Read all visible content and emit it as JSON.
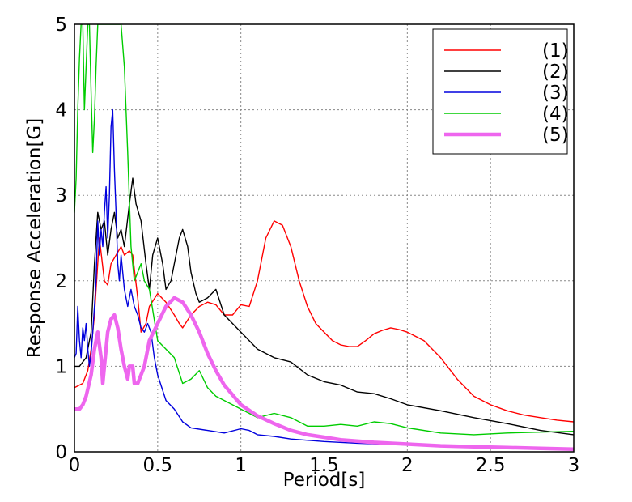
{
  "chart_data": {
    "type": "line",
    "title": "",
    "xlabel": "Period[s]",
    "ylabel": "Response Acceleration[G]",
    "xlim": [
      0,
      3
    ],
    "ylim": [
      0,
      5
    ],
    "xticks": [
      0,
      0.5,
      1,
      1.5,
      2,
      2.5,
      3
    ],
    "xtick_labels": [
      "0",
      "0.5",
      "1",
      "1.5",
      "2",
      "2.5",
      "3"
    ],
    "yticks": [
      0,
      1,
      2,
      3,
      4,
      5
    ],
    "ytick_labels": [
      "0",
      "1",
      "2",
      "3",
      "4",
      "5"
    ],
    "grid": true,
    "legend": "top-right",
    "series": [
      {
        "name": "(1)",
        "color": "#ff0000",
        "width": 1.4,
        "x": [
          0,
          0.05,
          0.08,
          0.1,
          0.12,
          0.15,
          0.18,
          0.2,
          0.22,
          0.25,
          0.28,
          0.3,
          0.33,
          0.35,
          0.38,
          0.4,
          0.43,
          0.45,
          0.5,
          0.55,
          0.6,
          0.63,
          0.65,
          0.7,
          0.75,
          0.8,
          0.85,
          0.9,
          0.95,
          1.0,
          1.05,
          1.1,
          1.15,
          1.2,
          1.25,
          1.3,
          1.35,
          1.4,
          1.45,
          1.5,
          1.55,
          1.6,
          1.65,
          1.7,
          1.75,
          1.8,
          1.85,
          1.9,
          1.95,
          2.0,
          2.1,
          2.2,
          2.3,
          2.4,
          2.5,
          2.6,
          2.7,
          2.8,
          2.9,
          3.0
        ],
        "y": [
          0.75,
          0.8,
          0.95,
          1.2,
          1.6,
          2.5,
          2.0,
          1.95,
          2.2,
          2.3,
          2.4,
          2.3,
          2.35,
          2.3,
          1.8,
          1.4,
          1.5,
          1.7,
          1.85,
          1.75,
          1.6,
          1.5,
          1.45,
          1.6,
          1.7,
          1.75,
          1.72,
          1.6,
          1.6,
          1.72,
          1.7,
          2.0,
          2.5,
          2.7,
          2.65,
          2.4,
          2.0,
          1.7,
          1.5,
          1.4,
          1.3,
          1.25,
          1.23,
          1.23,
          1.3,
          1.38,
          1.42,
          1.45,
          1.43,
          1.4,
          1.3,
          1.1,
          0.85,
          0.65,
          0.55,
          0.48,
          0.43,
          0.4,
          0.37,
          0.35
        ]
      },
      {
        "name": "(2)",
        "color": "#000000",
        "width": 1.4,
        "x": [
          0,
          0.03,
          0.05,
          0.07,
          0.1,
          0.12,
          0.14,
          0.16,
          0.18,
          0.2,
          0.22,
          0.24,
          0.26,
          0.28,
          0.3,
          0.33,
          0.35,
          0.37,
          0.4,
          0.43,
          0.45,
          0.47,
          0.5,
          0.53,
          0.55,
          0.58,
          0.6,
          0.63,
          0.65,
          0.68,
          0.7,
          0.73,
          0.75,
          0.8,
          0.85,
          0.9,
          1.0,
          1.1,
          1.2,
          1.3,
          1.4,
          1.5,
          1.6,
          1.7,
          1.8,
          1.9,
          2.0,
          2.2,
          2.4,
          2.6,
          2.8,
          3.0
        ],
        "y": [
          1.0,
          1.0,
          1.05,
          1.1,
          1.4,
          2.2,
          2.8,
          2.6,
          2.7,
          2.3,
          2.6,
          2.8,
          2.5,
          2.6,
          2.4,
          2.9,
          3.2,
          2.9,
          2.7,
          2.2,
          1.9,
          2.3,
          2.5,
          2.2,
          1.9,
          2.0,
          2.2,
          2.5,
          2.6,
          2.4,
          2.1,
          1.85,
          1.75,
          1.8,
          1.9,
          1.6,
          1.4,
          1.2,
          1.1,
          1.05,
          0.9,
          0.82,
          0.78,
          0.7,
          0.68,
          0.62,
          0.55,
          0.48,
          0.4,
          0.33,
          0.25,
          0.2
        ]
      },
      {
        "name": "(3)",
        "color": "#0000dd",
        "width": 1.4,
        "x": [
          0,
          0.01,
          0.02,
          0.03,
          0.04,
          0.05,
          0.06,
          0.07,
          0.08,
          0.09,
          0.1,
          0.11,
          0.12,
          0.13,
          0.14,
          0.15,
          0.16,
          0.17,
          0.18,
          0.19,
          0.2,
          0.21,
          0.22,
          0.23,
          0.24,
          0.25,
          0.26,
          0.27,
          0.28,
          0.3,
          0.32,
          0.34,
          0.36,
          0.38,
          0.4,
          0.42,
          0.44,
          0.46,
          0.48,
          0.5,
          0.55,
          0.6,
          0.65,
          0.7,
          0.8,
          0.9,
          1.0,
          1.05,
          1.1,
          1.2,
          1.3,
          1.5,
          1.7,
          2.0,
          2.3,
          2.6,
          3.0
        ],
        "y": [
          1.1,
          1.15,
          1.7,
          1.3,
          1.1,
          1.45,
          1.3,
          1.5,
          1.2,
          1.0,
          1.15,
          1.4,
          1.7,
          2.0,
          2.7,
          2.3,
          2.6,
          2.4,
          2.8,
          3.1,
          2.5,
          3.0,
          3.8,
          4.0,
          3.3,
          2.8,
          2.2,
          2.0,
          2.3,
          1.9,
          1.7,
          1.9,
          1.7,
          1.6,
          1.45,
          1.4,
          1.5,
          1.4,
          1.1,
          0.9,
          0.6,
          0.5,
          0.35,
          0.28,
          0.25,
          0.22,
          0.27,
          0.25,
          0.2,
          0.18,
          0.15,
          0.12,
          0.1,
          0.08,
          0.06,
          0.05,
          0.04
        ]
      },
      {
        "name": "(4)",
        "color": "#00cc00",
        "width": 1.4,
        "x": [
          0,
          0.01,
          0.02,
          0.03,
          0.04,
          0.05,
          0.06,
          0.07,
          0.08,
          0.09,
          0.1,
          0.11,
          0.12,
          0.13,
          0.14,
          0.15,
          0.16,
          0.17,
          0.18,
          0.2,
          0.22,
          0.24,
          0.26,
          0.28,
          0.3,
          0.32,
          0.34,
          0.36,
          0.38,
          0.4,
          0.42,
          0.45,
          0.5,
          0.55,
          0.6,
          0.65,
          0.7,
          0.75,
          0.8,
          0.85,
          0.9,
          1.0,
          1.1,
          1.2,
          1.3,
          1.4,
          1.5,
          1.6,
          1.7,
          1.8,
          1.9,
          2.0,
          2.2,
          2.4,
          2.6,
          2.8,
          3.0
        ],
        "y": [
          2.8,
          3.2,
          4.0,
          4.6,
          5.0,
          5.0,
          4.0,
          4.5,
          5.0,
          5.0,
          4.2,
          3.5,
          3.9,
          4.5,
          5.0,
          5.0,
          5.0,
          5.0,
          5.0,
          5.0,
          5.0,
          5.0,
          5.0,
          5.0,
          4.5,
          3.5,
          2.4,
          2.0,
          2.1,
          2.2,
          2.0,
          1.9,
          1.3,
          1.2,
          1.1,
          0.8,
          0.85,
          0.95,
          0.75,
          0.65,
          0.6,
          0.5,
          0.4,
          0.45,
          0.4,
          0.3,
          0.3,
          0.32,
          0.3,
          0.35,
          0.33,
          0.28,
          0.22,
          0.2,
          0.22,
          0.23,
          0.24
        ]
      },
      {
        "name": "(5)",
        "color": "#ee66ee",
        "width": 4.5,
        "x": [
          0,
          0.03,
          0.05,
          0.07,
          0.1,
          0.12,
          0.14,
          0.16,
          0.17,
          0.18,
          0.2,
          0.22,
          0.24,
          0.26,
          0.28,
          0.3,
          0.32,
          0.33,
          0.35,
          0.36,
          0.38,
          0.4,
          0.42,
          0.45,
          0.5,
          0.55,
          0.6,
          0.65,
          0.7,
          0.75,
          0.8,
          0.85,
          0.9,
          1.0,
          1.1,
          1.2,
          1.3,
          1.4,
          1.5,
          1.6,
          1.8,
          2.0,
          2.2,
          2.4,
          2.6,
          2.8,
          3.0
        ],
        "y": [
          0.5,
          0.5,
          0.55,
          0.65,
          0.9,
          1.2,
          1.4,
          1.1,
          0.8,
          1.0,
          1.4,
          1.55,
          1.6,
          1.45,
          1.2,
          1.0,
          0.85,
          1.0,
          1.0,
          0.8,
          0.8,
          0.9,
          1.0,
          1.3,
          1.5,
          1.7,
          1.8,
          1.75,
          1.6,
          1.4,
          1.15,
          0.95,
          0.78,
          0.55,
          0.42,
          0.33,
          0.25,
          0.2,
          0.17,
          0.14,
          0.11,
          0.09,
          0.07,
          0.06,
          0.05,
          0.04,
          0.03
        ]
      }
    ]
  }
}
